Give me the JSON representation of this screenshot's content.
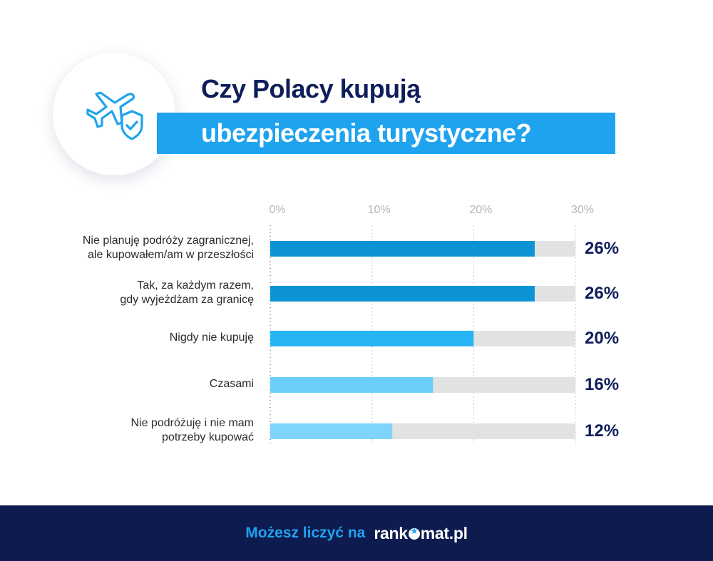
{
  "header": {
    "title_line1": "Czy Polacy kupują",
    "title_line2": "ubezpieczenia turystyczne?",
    "icon": "airplane-shield-icon"
  },
  "colors": {
    "title_dark": "#0e1e5b",
    "accent": "#1fa3ef",
    "track": "#e2e2e2",
    "footer_bg": "#0d1b4f"
  },
  "chart_data": {
    "type": "bar",
    "orientation": "horizontal",
    "categories": [
      "Nie planuję podróży zagranicznej,\nale kupowałem/am w przeszłości",
      "Tak, za każdym razem,\ngdy wyjeżdżam za granicę",
      "Nigdy nie kupuję",
      "Czasami",
      "Nie podróżuję i nie mam\npotrzeby kupować"
    ],
    "values": [
      26,
      26,
      20,
      16,
      12
    ],
    "value_labels": [
      "26%",
      "26%",
      "20%",
      "16%",
      "12%"
    ],
    "bar_colors": [
      "#0b93d6",
      "#0b93d6",
      "#28b5f5",
      "#6ad0fb",
      "#7fd4fb"
    ],
    "xlim": [
      0,
      30
    ],
    "ticks": [
      0,
      10,
      20,
      30
    ],
    "tick_labels": [
      "0%",
      "10%",
      "20%",
      "30%"
    ],
    "grid": true,
    "unit": "%"
  },
  "footer": {
    "tagline": "Możesz liczyć na",
    "brand_part1": "rank",
    "brand_part2": "mat.pl"
  }
}
